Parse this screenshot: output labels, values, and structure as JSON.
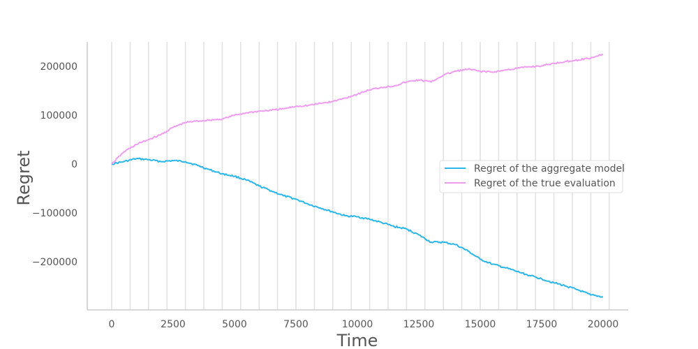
{
  "chart_data": {
    "type": "line",
    "title": "",
    "xlabel": "Time",
    "ylabel": "Regret",
    "xlim": [
      -1000,
      21000
    ],
    "ylim": [
      -295000,
      250000
    ],
    "x_ticks": [
      0,
      2500,
      5000,
      7500,
      10000,
      12500,
      15000,
      17500,
      20000
    ],
    "x_tick_labels": [
      "0",
      "2500",
      "5000",
      "7500",
      "10000",
      "12500",
      "15000",
      "17500",
      "20000"
    ],
    "y_ticks": [
      -200000,
      -100000,
      0,
      100000,
      200000
    ],
    "y_tick_labels": [
      "−200000",
      "−100000",
      "0",
      "100000",
      "200000"
    ],
    "vertical_grid": true,
    "horizontal_grid": false,
    "legend_position": "center-right",
    "series": [
      {
        "name": "Regret of the aggregate model",
        "color": "#29b6ea",
        "x": [
          0,
          500,
          1000,
          1500,
          2000,
          2500,
          3000,
          3500,
          4000,
          4500,
          5000,
          5500,
          6000,
          6500,
          7000,
          7500,
          8000,
          8500,
          9000,
          9500,
          10000,
          10500,
          11000,
          11500,
          12000,
          12500,
          13000,
          13500,
          14000,
          14500,
          15000,
          15500,
          16000,
          16500,
          17000,
          17500,
          18000,
          18500,
          19000,
          19500,
          20000
        ],
        "y": [
          0,
          5000,
          11000,
          9000,
          5000,
          7000,
          5000,
          -3000,
          -12000,
          -20000,
          -25000,
          -33000,
          -45000,
          -55000,
          -65000,
          -72000,
          -82000,
          -90000,
          -98000,
          -106000,
          -108000,
          -113000,
          -120000,
          -128000,
          -133000,
          -145000,
          -160000,
          -160000,
          -165000,
          -178000,
          -195000,
          -205000,
          -212000,
          -220000,
          -228000,
          -235000,
          -243000,
          -250000,
          -258000,
          -268000,
          -272000
        ]
      },
      {
        "name": "Regret of the true evaluation",
        "color": "#ef9cf0",
        "x": [
          0,
          500,
          1000,
          1500,
          2000,
          2500,
          3000,
          3500,
          4000,
          4500,
          5000,
          5500,
          6000,
          6500,
          7000,
          7500,
          8000,
          8500,
          9000,
          9500,
          10000,
          10500,
          11000,
          11500,
          12000,
          12500,
          13000,
          13500,
          14000,
          14500,
          15000,
          15500,
          16000,
          16500,
          17000,
          17500,
          18000,
          18500,
          19000,
          19500,
          20000
        ],
        "y": [
          0,
          25000,
          40000,
          50000,
          60000,
          75000,
          85000,
          88000,
          90000,
          92000,
          100000,
          105000,
          108000,
          110000,
          113000,
          118000,
          120000,
          124000,
          128000,
          135000,
          143000,
          152000,
          157000,
          160000,
          168000,
          172000,
          168000,
          182000,
          190000,
          194000,
          190000,
          188000,
          192000,
          196000,
          199000,
          201000,
          206000,
          210000,
          213000,
          217000,
          225000
        ]
      }
    ]
  }
}
